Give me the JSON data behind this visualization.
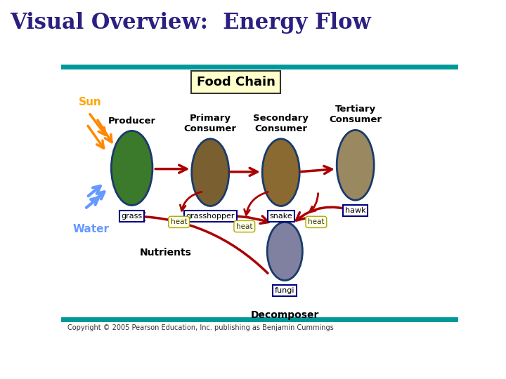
{
  "title": "Visual Overview:  Energy Flow",
  "title_color": "#2B2080",
  "title_fontsize": 22,
  "copyright": "Copyright © 2005 Pearson Education, Inc. publishing as Benjamin Cummings",
  "header_line_color": "#009999",
  "bg_color": "#FFFFFF",
  "food_chain_label": "Food Chain",
  "food_chain_box_color": "#FFFFCC",
  "food_chain_box_edge": "#333333",
  "labels": {
    "sun": "Sun",
    "water": "Water",
    "producer": "Producer",
    "primary": "Primary\nConsumer",
    "secondary": "Secondary\nConsumer",
    "tertiary": "Tertiary\nConsumer",
    "grass": "grass",
    "grasshopper": "grasshopper",
    "snake": "snake",
    "hawk": "hawk",
    "nutrients": "Nutrients",
    "decomposer": "Decomposer",
    "fungi": "fungi",
    "heat": "heat"
  },
  "sun_color": "#FFA500",
  "water_color": "#6699FF",
  "arrow_color_red": "#AA0000",
  "arrow_color_orange": "#FF8800",
  "arrow_color_blue": "#6699FF"
}
